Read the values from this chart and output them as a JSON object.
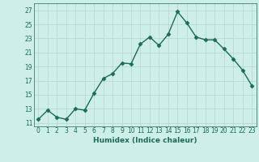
{
  "x": [
    0,
    1,
    2,
    3,
    4,
    5,
    6,
    7,
    8,
    9,
    10,
    11,
    12,
    13,
    14,
    15,
    16,
    17,
    18,
    19,
    20,
    21,
    22,
    23
  ],
  "y": [
    11.5,
    12.8,
    11.8,
    11.5,
    13.0,
    12.8,
    15.2,
    17.3,
    18.0,
    19.5,
    19.4,
    22.2,
    23.2,
    22.0,
    23.6,
    26.8,
    25.2,
    23.2,
    22.8,
    22.8,
    21.5,
    20.1,
    18.5,
    16.3
  ],
  "line_color": "#1a6b5a",
  "marker": "D",
  "markersize": 2.5,
  "linewidth": 1.0,
  "xlabel": "Humidex (Indice chaleur)",
  "xlim": [
    -0.5,
    23.5
  ],
  "ylim": [
    10.5,
    28
  ],
  "yticks": [
    11,
    13,
    15,
    17,
    19,
    21,
    23,
    25,
    27
  ],
  "xticks": [
    0,
    1,
    2,
    3,
    4,
    5,
    6,
    7,
    8,
    9,
    10,
    11,
    12,
    13,
    14,
    15,
    16,
    17,
    18,
    19,
    20,
    21,
    22,
    23
  ],
  "bg_color": "#ceeee8",
  "grid_color": "#b8d8d2",
  "label_fontsize": 6.5,
  "tick_fontsize": 5.5
}
